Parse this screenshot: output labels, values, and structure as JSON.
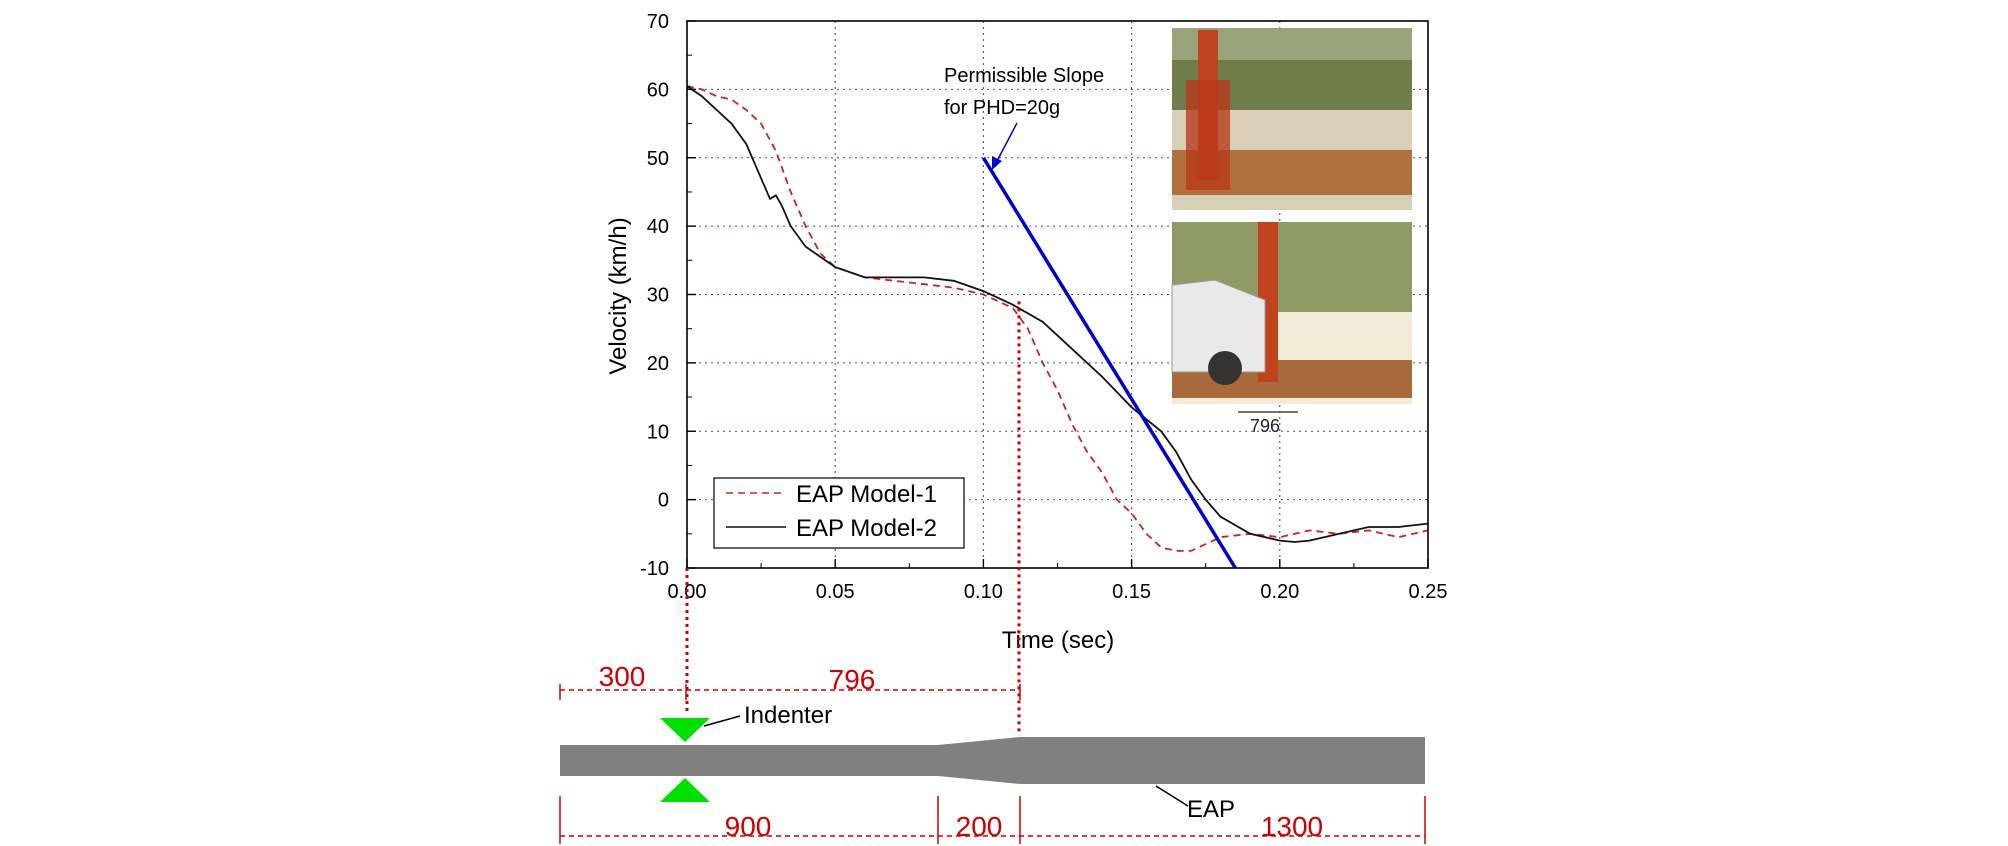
{
  "chart_data": {
    "type": "line",
    "xlabel": "Time (sec)",
    "ylabel": "Velocity (km/h)",
    "xlim": [
      0,
      0.25
    ],
    "ylim": [
      -10,
      70
    ],
    "x_ticks": [
      "0.00",
      "0.05",
      "0.10",
      "0.15",
      "0.20",
      "0.25"
    ],
    "y_ticks": [
      "-10",
      "0",
      "10",
      "20",
      "30",
      "40",
      "50",
      "60",
      "70"
    ],
    "grid": true,
    "legend_position": "bottom-left",
    "series": [
      {
        "name": "EAP Model-1",
        "style": "dashed",
        "color": "#cc2222",
        "x": [
          0.0,
          0.005,
          0.01,
          0.015,
          0.02,
          0.025,
          0.03,
          0.035,
          0.04,
          0.045,
          0.05,
          0.06,
          0.07,
          0.08,
          0.09,
          0.1,
          0.105,
          0.11,
          0.115,
          0.12,
          0.125,
          0.13,
          0.135,
          0.14,
          0.145,
          0.15,
          0.155,
          0.16,
          0.165,
          0.17,
          0.175,
          0.18,
          0.19,
          0.2,
          0.21,
          0.22,
          0.23,
          0.24,
          0.25
        ],
        "y": [
          60.5,
          60,
          59,
          58.5,
          57,
          55,
          51,
          45,
          40,
          36,
          34,
          32.5,
          32,
          31.5,
          31,
          30,
          29,
          28,
          25,
          20,
          16,
          11,
          7,
          4,
          0,
          -2,
          -5,
          -7,
          -7.5,
          -7.5,
          -6.5,
          -5.5,
          -5,
          -5.5,
          -4.5,
          -5,
          -4.5,
          -5.5,
          -4.5
        ]
      },
      {
        "name": "EAP Model-2",
        "style": "solid",
        "color": "#111111",
        "x": [
          0.0,
          0.005,
          0.01,
          0.015,
          0.02,
          0.025,
          0.028,
          0.03,
          0.032,
          0.035,
          0.04,
          0.045,
          0.05,
          0.06,
          0.07,
          0.08,
          0.09,
          0.1,
          0.11,
          0.12,
          0.13,
          0.14,
          0.15,
          0.16,
          0.165,
          0.17,
          0.175,
          0.18,
          0.19,
          0.2,
          0.205,
          0.21,
          0.22,
          0.23,
          0.24,
          0.25
        ],
        "y": [
          60.5,
          59,
          57,
          55,
          52,
          47,
          44,
          44.5,
          43,
          40,
          37,
          35.5,
          34,
          32.5,
          32.5,
          32.5,
          32,
          30.5,
          28.5,
          26,
          22,
          18,
          13.5,
          10,
          7,
          3,
          0,
          -2.5,
          -5,
          -6,
          -6.2,
          -6,
          -5,
          -4,
          -4,
          -3.5
        ]
      }
    ],
    "reference_line": {
      "label": "Permissible Slope for PHD=20g",
      "label_line1": "Permissible Slope",
      "label_line2": "for PHD=20g",
      "color": "#0000cc",
      "x": [
        0.1,
        0.185
      ],
      "y": [
        50,
        -10
      ]
    },
    "marker_time": 0.112,
    "photo_caption": "796"
  },
  "schematic": {
    "indenter_label": "Indenter",
    "eap_label": "EAP",
    "dimensions_top": [
      "300",
      "796"
    ],
    "dimensions_bottom": [
      "900",
      "200",
      "1300"
    ],
    "colors": {
      "tube": "#808080",
      "indenter": "#00e000",
      "dimension": "#cc0000"
    }
  }
}
